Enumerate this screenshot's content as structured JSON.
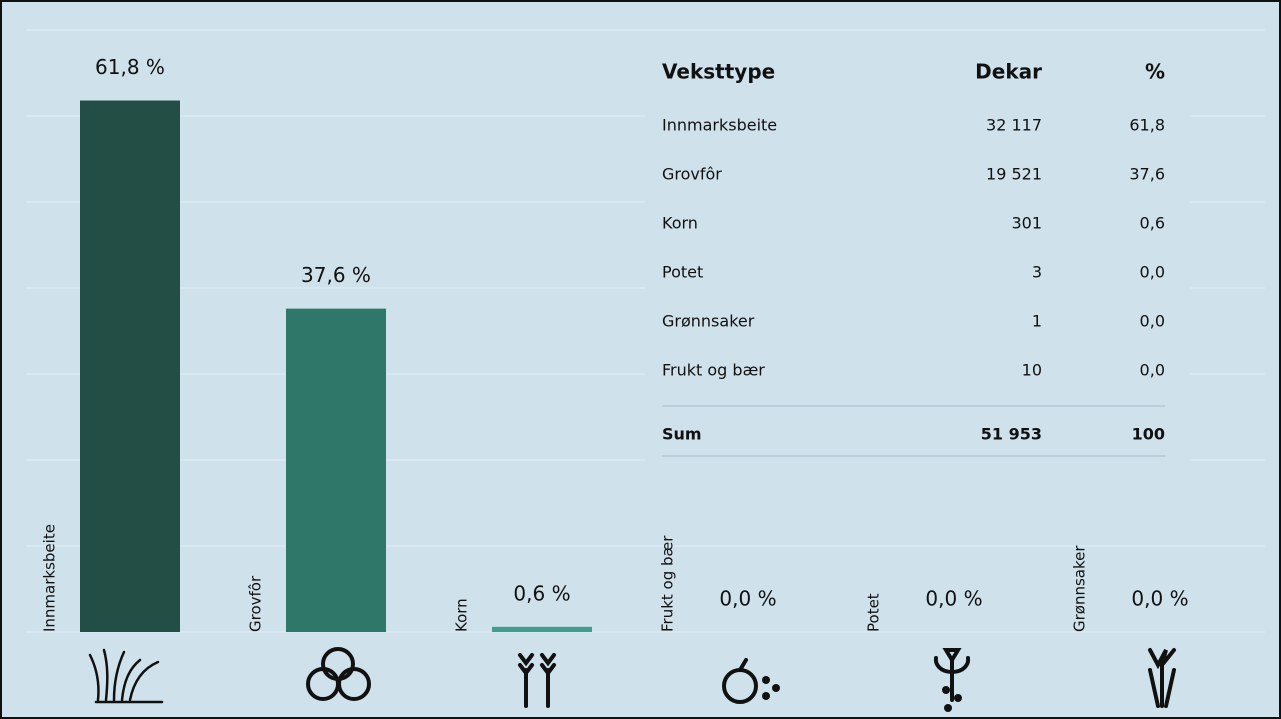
{
  "chart_data": {
    "type": "bar",
    "categories": [
      "Innmarksbeite",
      "Grovfôr",
      "Korn",
      "Frukt og bær",
      "Potet",
      "Grønnsaker"
    ],
    "values": [
      61.8,
      37.6,
      0.6,
      0.0,
      0.0,
      0.0
    ],
    "value_labels": [
      "61,8 %",
      "37,6 %",
      "0,6 %",
      "0,0 %",
      "0,0 %",
      "0,0 %"
    ],
    "colors": [
      "#234e46",
      "#2e7769",
      "#3f9f8b",
      "#3f9f8b",
      "#3f9f8b",
      "#3f9f8b"
    ],
    "ylim": [
      0,
      70
    ],
    "yticks": [
      0,
      10,
      20,
      30,
      40,
      50,
      60,
      70
    ],
    "grid": true
  },
  "table": {
    "header": [
      "Veksttype",
      "Dekar",
      "%"
    ],
    "rows": [
      [
        "Innmarksbeite",
        "32 117",
        "61,8"
      ],
      [
        "Grovfôr",
        "19 521",
        "37,6"
      ],
      [
        "Korn",
        "301",
        "0,6"
      ],
      [
        "Potet",
        "3",
        "0,0"
      ],
      [
        "Grønnsaker",
        "1",
        "0,0"
      ],
      [
        "Frukt og bær",
        "10",
        "0,0"
      ]
    ],
    "total": [
      "Sum",
      "51 953",
      "100"
    ]
  }
}
